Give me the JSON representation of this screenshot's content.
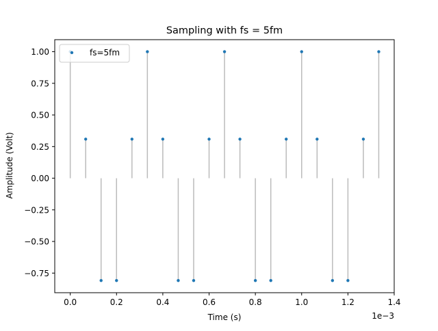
{
  "chart_data": {
    "type": "scatter",
    "style": "stem",
    "title": "Sampling with fs = 5fm",
    "xlabel": "Time (s)",
    "ylabel": "Amplitude (Volt)",
    "x_offset_label": "1e−3",
    "x_scale": 0.001,
    "xlim": [
      -6.7e-05,
      0.0014
    ],
    "ylim": [
      -0.905,
      1.095
    ],
    "x_ticks": [
      0.0,
      0.0002,
      0.0004,
      0.0006,
      0.0008,
      0.001,
      0.0012,
      0.0014
    ],
    "x_tick_labels": [
      "0.0",
      "0.2",
      "0.4",
      "0.6",
      "0.8",
      "1.0",
      "1.2",
      "1.4"
    ],
    "y_ticks": [
      -0.75,
      -0.5,
      -0.25,
      0.0,
      0.25,
      0.5,
      0.75,
      1.0
    ],
    "y_tick_labels": [
      "−0.75",
      "−0.50",
      "−0.25",
      "0.00",
      "0.25",
      "0.50",
      "0.75",
      "1.00"
    ],
    "grid": false,
    "legend_position": "top-left",
    "series": [
      {
        "name": "fs=5fm",
        "color": "#1f77b4",
        "stem_color": "#bbbbbb",
        "x": [
          0.0,
          6.67e-05,
          0.0001333,
          0.0002,
          0.0002667,
          0.0003333,
          0.0004,
          0.0004667,
          0.0005333,
          0.0006,
          0.0006667,
          0.0007333,
          0.0008,
          0.0008667,
          0.0009333,
          0.001,
          0.0010667,
          0.0011333,
          0.0012,
          0.0012667,
          0.0013333
        ],
        "y": [
          1.0,
          0.309,
          -0.809,
          -0.809,
          0.309,
          1.0,
          0.309,
          -0.809,
          -0.809,
          0.309,
          1.0,
          0.309,
          -0.809,
          -0.809,
          0.309,
          1.0,
          0.309,
          -0.809,
          -0.809,
          0.309,
          1.0
        ]
      }
    ]
  }
}
